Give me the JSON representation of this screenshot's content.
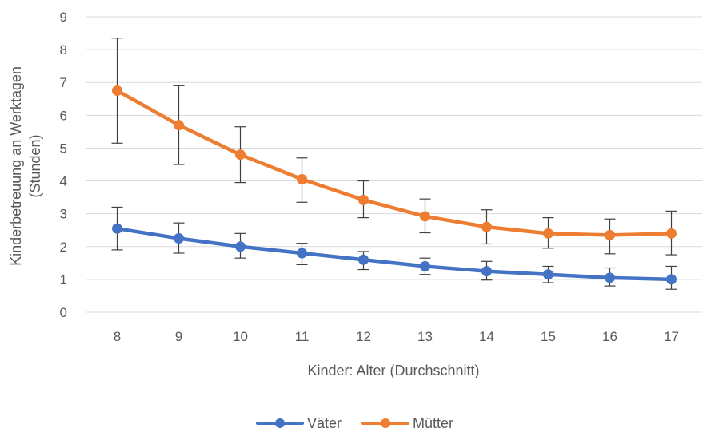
{
  "chart_data": {
    "type": "line",
    "xlabel": "Kinder: Alter (Durchschnitt)",
    "ylabel_lines": [
      "Kinderbetreuung an Werktagen",
      "(Stunden)"
    ],
    "ylim": [
      0,
      9
    ],
    "yticks": [
      "0",
      "1",
      "2",
      "3",
      "4",
      "5",
      "6",
      "7",
      "8",
      "9"
    ],
    "categories": [
      "8",
      "9",
      "10",
      "11",
      "12",
      "13",
      "14",
      "15",
      "16",
      "17"
    ],
    "grid": true,
    "legend_position": "bottom",
    "series": [
      {
        "name": "Väter",
        "color": "#4472c4",
        "values": [
          2.55,
          2.25,
          2.0,
          1.8,
          1.6,
          1.4,
          1.25,
          1.15,
          1.05,
          1.0
        ],
        "err_low": [
          1.9,
          1.8,
          1.65,
          1.45,
          1.3,
          1.15,
          0.98,
          0.9,
          0.8,
          0.7
        ],
        "err_high": [
          3.2,
          2.72,
          2.4,
          2.1,
          1.85,
          1.65,
          1.55,
          1.4,
          1.35,
          1.4
        ]
      },
      {
        "name": "Mütter",
        "color": "#ed7d31",
        "values": [
          6.75,
          5.7,
          4.8,
          4.05,
          3.42,
          2.92,
          2.6,
          2.4,
          2.35,
          2.4
        ],
        "err_low": [
          5.15,
          4.5,
          3.95,
          3.35,
          2.88,
          2.42,
          2.08,
          1.95,
          1.78,
          1.75
        ],
        "err_high": [
          8.35,
          6.9,
          5.65,
          4.7,
          4.0,
          3.45,
          3.12,
          2.88,
          2.84,
          3.08
        ]
      }
    ]
  }
}
